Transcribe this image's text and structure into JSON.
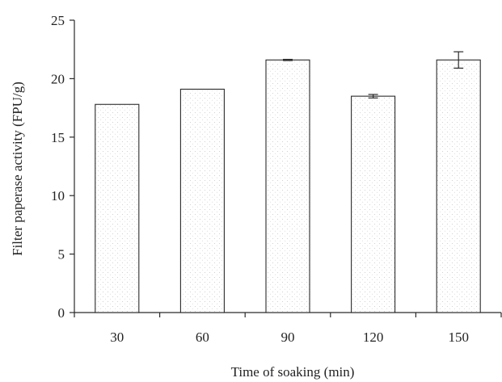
{
  "chart_data": {
    "type": "bar",
    "title": "",
    "xlabel": "Time of soaking (min)",
    "ylabel": "Filter paperase activity (FPU/g)",
    "categories": [
      "30",
      "60",
      "90",
      "120",
      "150"
    ],
    "values": [
      17.8,
      19.1,
      21.6,
      18.5,
      21.6
    ],
    "errors": [
      0.0,
      0.0,
      0.05,
      0.15,
      0.7
    ],
    "ylim": [
      0,
      25
    ],
    "yticks": [
      "0",
      "5",
      "10",
      "15",
      "20",
      "25"
    ],
    "grid": false,
    "legend": "none"
  }
}
